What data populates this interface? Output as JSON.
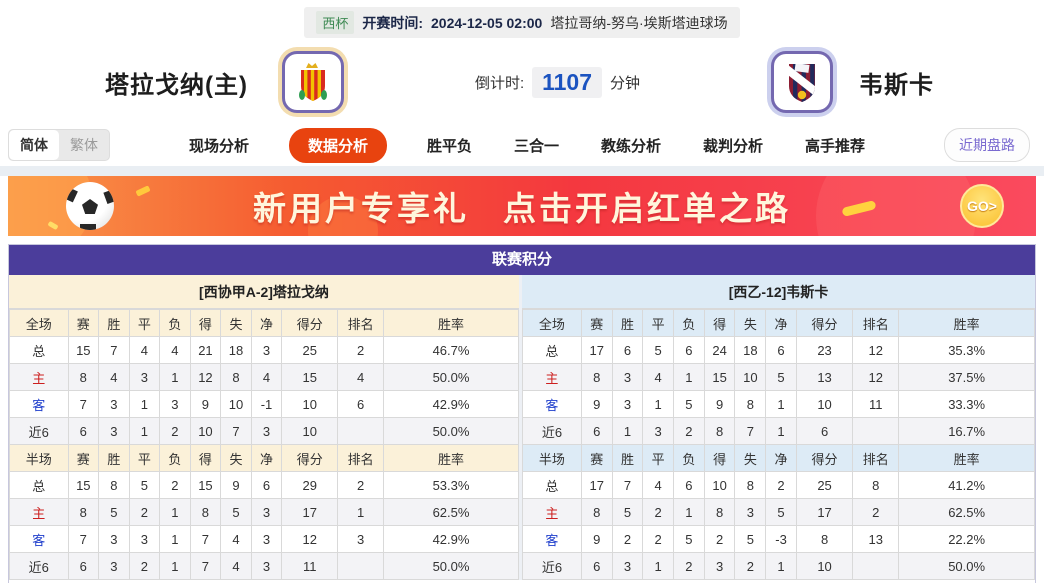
{
  "top_bar": {
    "league_badge": "西杯",
    "kickoff_label": "开赛时间:",
    "kickoff_time": "2024-12-05 02:00",
    "venue": "塔拉哥纳-努乌·埃斯塔迪球场"
  },
  "match_header": {
    "home_name": "塔拉戈纳(主)",
    "away_name": "韦斯卡",
    "countdown_label": "倒计时:",
    "countdown_value": "1107",
    "countdown_unit": "分钟"
  },
  "nav": {
    "lang_simplified": "简体",
    "lang_traditional": "繁体",
    "tabs": [
      {
        "label": "现场分析",
        "active": false
      },
      {
        "label": "数据分析",
        "active": true
      },
      {
        "label": "胜平负",
        "active": false
      },
      {
        "label": "三合一",
        "active": false
      },
      {
        "label": "教练分析",
        "active": false
      },
      {
        "label": "裁判分析",
        "active": false
      },
      {
        "label": "高手推荐",
        "active": false
      }
    ],
    "recent_trend_button": "近期盘路"
  },
  "banner": {
    "text_left": "新用户专享礼",
    "text_right": "点击开启红单之路",
    "go_label": "GO>"
  },
  "standings": {
    "title": "联赛积分",
    "columns": [
      "赛",
      "胜",
      "平",
      "负",
      "得",
      "失",
      "净",
      "得分",
      "排名",
      "胜率"
    ],
    "home": {
      "header": "[西协甲A-2]塔拉戈纳",
      "sections": [
        {
          "scope": "全场",
          "rows": [
            {
              "label": "总",
              "type": "total",
              "values": [
                "15",
                "7",
                "4",
                "4",
                "21",
                "18",
                "3",
                "25",
                "2",
                "46.7%"
              ]
            },
            {
              "label": "主",
              "type": "home",
              "values": [
                "8",
                "4",
                "3",
                "1",
                "12",
                "8",
                "4",
                "15",
                "4",
                "50.0%"
              ]
            },
            {
              "label": "客",
              "type": "away",
              "values": [
                "7",
                "3",
                "1",
                "3",
                "9",
                "10",
                "-1",
                "10",
                "6",
                "42.9%"
              ]
            },
            {
              "label": "近6",
              "type": "recent",
              "values": [
                "6",
                "3",
                "1",
                "2",
                "10",
                "7",
                "3",
                "10",
                "",
                "50.0%"
              ]
            }
          ]
        },
        {
          "scope": "半场",
          "rows": [
            {
              "label": "总",
              "type": "total",
              "values": [
                "15",
                "8",
                "5",
                "2",
                "15",
                "9",
                "6",
                "29",
                "2",
                "53.3%"
              ]
            },
            {
              "label": "主",
              "type": "home",
              "values": [
                "8",
                "5",
                "2",
                "1",
                "8",
                "5",
                "3",
                "17",
                "1",
                "62.5%"
              ]
            },
            {
              "label": "客",
              "type": "away",
              "values": [
                "7",
                "3",
                "3",
                "1",
                "7",
                "4",
                "3",
                "12",
                "3",
                "42.9%"
              ]
            },
            {
              "label": "近6",
              "type": "recent",
              "values": [
                "6",
                "3",
                "2",
                "1",
                "7",
                "4",
                "3",
                "11",
                "",
                "50.0%"
              ]
            }
          ]
        }
      ]
    },
    "away": {
      "header": "[西乙-12]韦斯卡",
      "sections": [
        {
          "scope": "全场",
          "rows": [
            {
              "label": "总",
              "type": "total",
              "values": [
                "17",
                "6",
                "5",
                "6",
                "24",
                "18",
                "6",
                "23",
                "12",
                "35.3%"
              ]
            },
            {
              "label": "主",
              "type": "home",
              "values": [
                "8",
                "3",
                "4",
                "1",
                "15",
                "10",
                "5",
                "13",
                "12",
                "37.5%"
              ]
            },
            {
              "label": "客",
              "type": "away",
              "values": [
                "9",
                "3",
                "1",
                "5",
                "9",
                "8",
                "1",
                "10",
                "11",
                "33.3%"
              ]
            },
            {
              "label": "近6",
              "type": "recent",
              "values": [
                "6",
                "1",
                "3",
                "2",
                "8",
                "7",
                "1",
                "6",
                "",
                "16.7%"
              ]
            }
          ]
        },
        {
          "scope": "半场",
          "rows": [
            {
              "label": "总",
              "type": "total",
              "values": [
                "17",
                "7",
                "4",
                "6",
                "10",
                "8",
                "2",
                "25",
                "8",
                "41.2%"
              ]
            },
            {
              "label": "主",
              "type": "home",
              "values": [
                "8",
                "5",
                "2",
                "1",
                "8",
                "3",
                "5",
                "17",
                "2",
                "62.5%"
              ]
            },
            {
              "label": "客",
              "type": "away",
              "values": [
                "9",
                "2",
                "2",
                "5",
                "2",
                "5",
                "-3",
                "8",
                "13",
                "22.2%"
              ]
            },
            {
              "label": "近6",
              "type": "recent",
              "values": [
                "6",
                "3",
                "1",
                "2",
                "3",
                "2",
                "1",
                "10",
                "",
                "50.0%"
              ]
            }
          ]
        }
      ]
    }
  },
  "colors": {
    "accent_purple": "#4b3d9b",
    "active_tab_orange": "#e8430f",
    "home_header_bg": "#fbf1d9",
    "away_header_bg": "#ddebf6",
    "home_row_red": "#cc1f1f",
    "away_row_blue": "#1f3ecc",
    "countdown_blue": "#1b53c0"
  }
}
